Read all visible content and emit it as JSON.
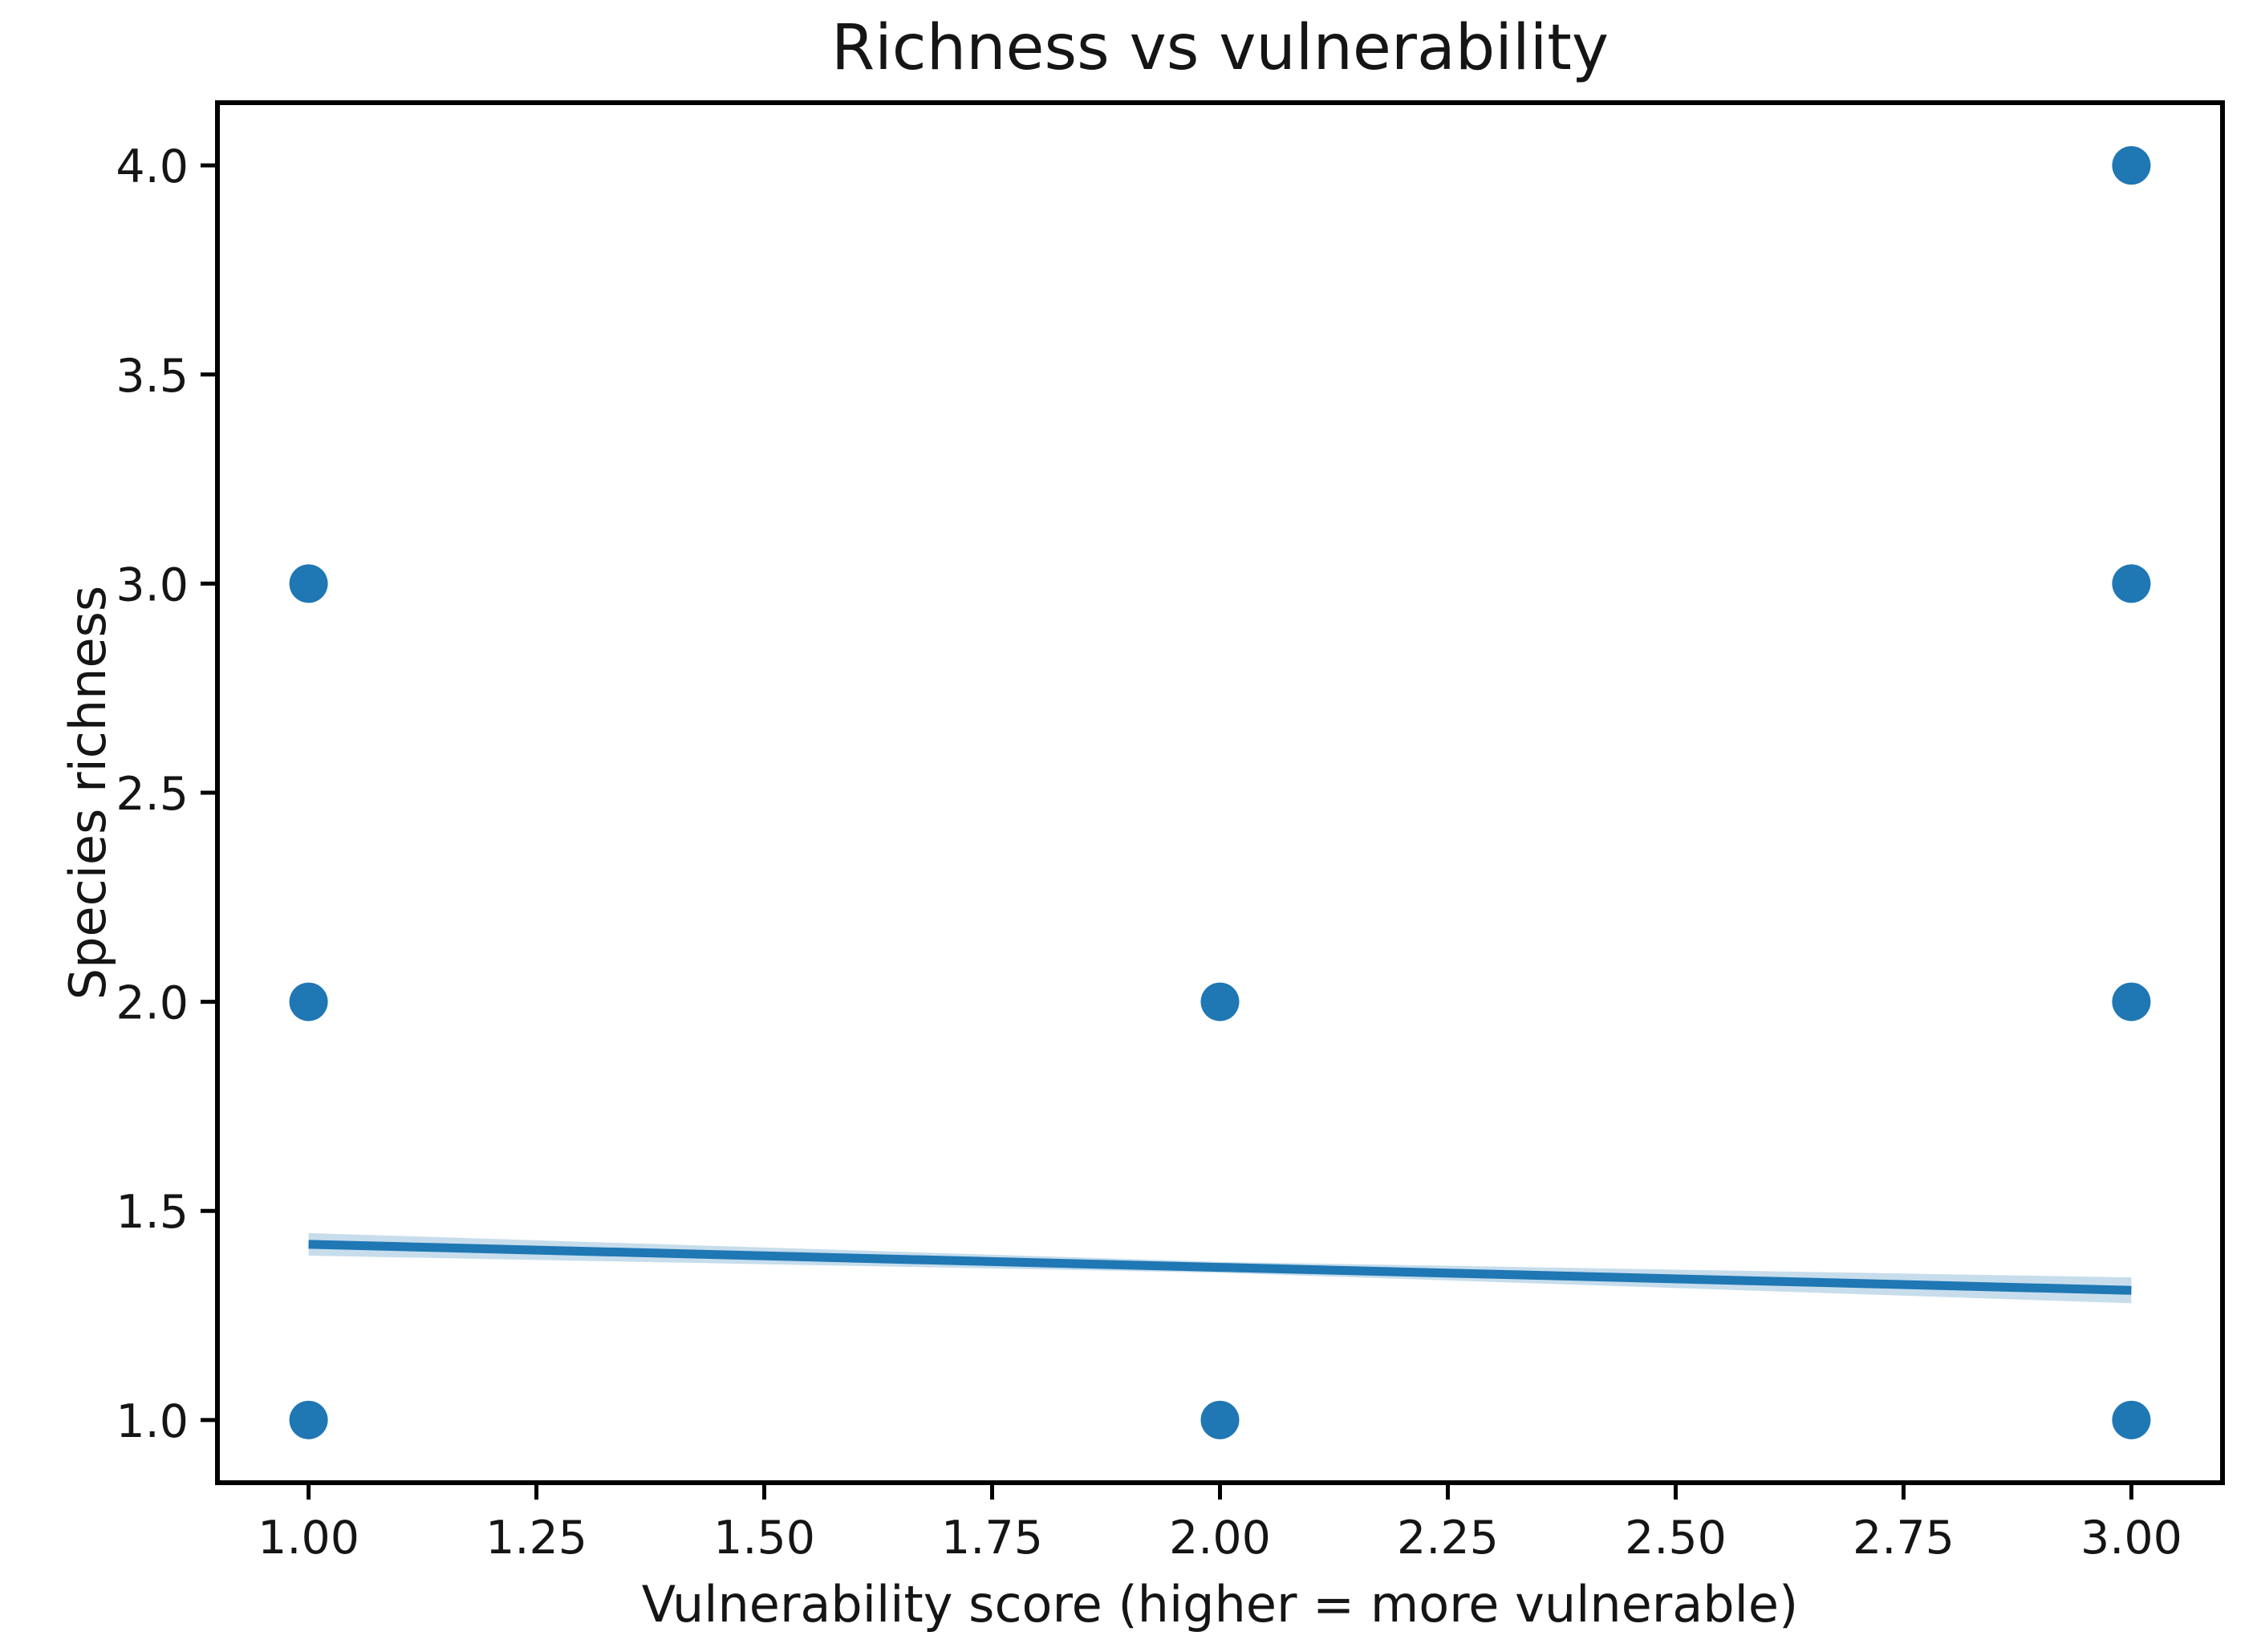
{
  "chart_data": {
    "type": "scatter",
    "title": "Richness vs vulnerability",
    "xlabel": "Vulnerability score (higher = more vulnerable)",
    "ylabel": "Species richness",
    "xlim": [
      0.9,
      3.1
    ],
    "ylim": [
      0.85,
      4.15
    ],
    "grid": false,
    "legend": null,
    "x_ticks": [
      {
        "value": 1.0,
        "label": "1.00"
      },
      {
        "value": 1.25,
        "label": "1.25"
      },
      {
        "value": 1.5,
        "label": "1.50"
      },
      {
        "value": 1.75,
        "label": "1.75"
      },
      {
        "value": 2.0,
        "label": "2.00"
      },
      {
        "value": 2.25,
        "label": "2.25"
      },
      {
        "value": 2.5,
        "label": "2.50"
      },
      {
        "value": 2.75,
        "label": "2.75"
      },
      {
        "value": 3.0,
        "label": "3.00"
      }
    ],
    "y_ticks": [
      {
        "value": 1.0,
        "label": "1.0"
      },
      {
        "value": 1.5,
        "label": "1.5"
      },
      {
        "value": 2.0,
        "label": "2.0"
      },
      {
        "value": 2.5,
        "label": "2.5"
      },
      {
        "value": 3.0,
        "label": "3.0"
      },
      {
        "value": 3.5,
        "label": "3.5"
      },
      {
        "value": 4.0,
        "label": "4.0"
      }
    ],
    "series": [
      {
        "name": "observations",
        "type": "scatter",
        "points": [
          {
            "x": 1,
            "y": 1
          },
          {
            "x": 1,
            "y": 2
          },
          {
            "x": 1,
            "y": 3
          },
          {
            "x": 2,
            "y": 1
          },
          {
            "x": 2,
            "y": 2
          },
          {
            "x": 3,
            "y": 1
          },
          {
            "x": 3,
            "y": 2
          },
          {
            "x": 3,
            "y": 3
          },
          {
            "x": 3,
            "y": 4
          }
        ]
      },
      {
        "name": "regression-line",
        "type": "line",
        "x": [
          1.0,
          3.0
        ],
        "y": [
          1.42,
          1.31
        ]
      },
      {
        "name": "confidence-band",
        "type": "band",
        "x": [
          1.0,
          2.0,
          3.0
        ],
        "upper": [
          1.447,
          1.378,
          1.341
        ],
        "lower": [
          1.393,
          1.352,
          1.279
        ]
      }
    ],
    "colors": {
      "marker": "#1f77b4",
      "line": "#1f77b4",
      "band": "#1f77b4",
      "band_opacity": "0.25",
      "axis": "#000000",
      "text": "#151515",
      "background": "#ffffff"
    }
  }
}
